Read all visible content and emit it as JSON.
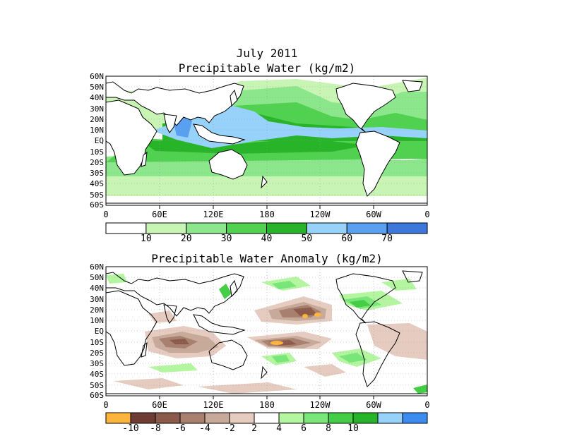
{
  "titles": {
    "month": "July 2011",
    "panel1": "Precipitable Water (kg/m2)",
    "panel2": "Precipitable Water Anomaly (kg/m2)"
  },
  "lat_labels": [
    "60N",
    "50N",
    "40N",
    "30N",
    "20N",
    "10N",
    "EQ",
    "10S",
    "20S",
    "30S",
    "40S",
    "50S",
    "60S"
  ],
  "lon_labels": [
    "0",
    "60E",
    "120E",
    "180",
    "120W",
    "60W",
    "0"
  ],
  "colorbar1": {
    "labels": [
      "10",
      "20",
      "30",
      "40",
      "50",
      "60",
      "70"
    ],
    "colors": [
      "#ffffff",
      "#c8f5b4",
      "#8ce68c",
      "#50d250",
      "#28b428",
      "#96d2fa",
      "#5aa0f0",
      "#3c78dc"
    ]
  },
  "colorbar2": {
    "labels": [
      "-10",
      "-8",
      "-6",
      "-4",
      "-2",
      "2",
      "4",
      "6",
      "8",
      "10"
    ],
    "colors": [
      "#ffb43c",
      "#6e3c32",
      "#8c5a4b",
      "#a88070",
      "#c8aa9a",
      "#e6ccc0",
      "#ffffff",
      "#b4f5a0",
      "#78e678",
      "#46cd46",
      "#28b428",
      "#96d2fa",
      "#3c8cf0"
    ]
  }
}
